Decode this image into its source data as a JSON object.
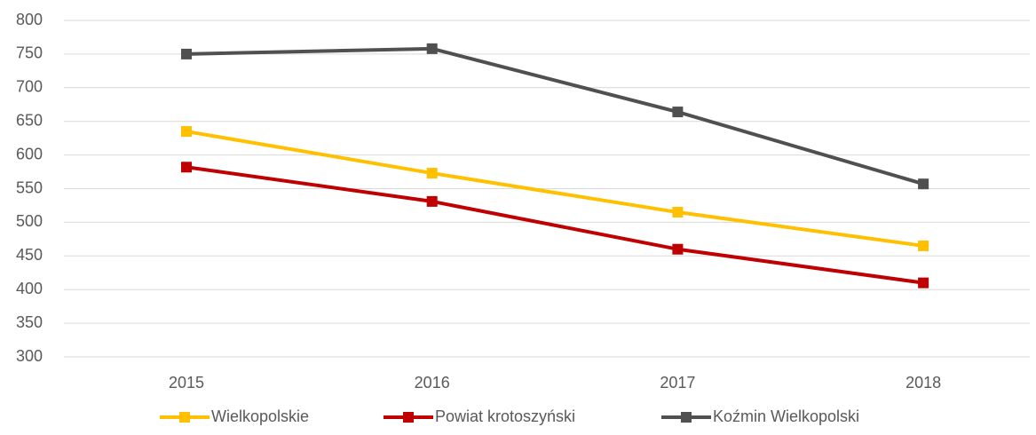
{
  "chart_data": {
    "type": "line",
    "categories": [
      "2015",
      "2016",
      "2017",
      "2018"
    ],
    "series": [
      {
        "name": "Wielkopolskie",
        "color": "#ffc000",
        "values": [
          635,
          573,
          515,
          465
        ]
      },
      {
        "name": "Powiat krotoszyński",
        "color": "#c00000",
        "values": [
          582,
          531,
          460,
          410
        ]
      },
      {
        "name": "Koźmin Wielkopolski",
        "color": "#505050",
        "values": [
          750,
          758,
          664,
          557
        ]
      }
    ],
    "ylim": [
      300,
      800
    ],
    "yticks": [
      300,
      350,
      400,
      450,
      500,
      550,
      600,
      650,
      700,
      750,
      800
    ],
    "grid": true,
    "legend": "bottom"
  }
}
